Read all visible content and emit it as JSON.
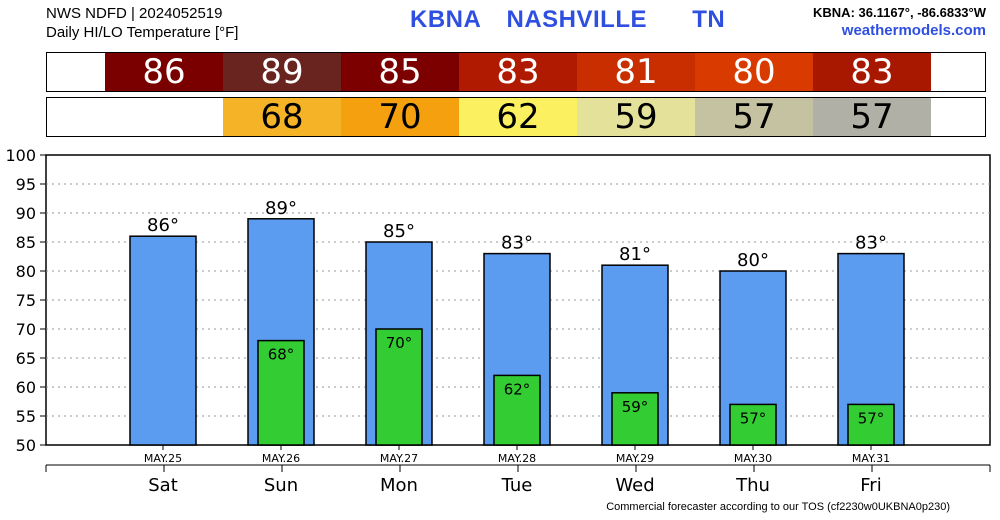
{
  "header": {
    "source_line": "NWS NDFD | 2024052519",
    "subtitle_line": "Daily HI/LO Temperature [°F]",
    "station_id": "KBNA",
    "station_name": "NASHVILLE",
    "state": "TN",
    "coords": "KBNA: 36.1167°, -86.6833°W",
    "site": "weathermodels.com"
  },
  "footer": "Commercial forecaster according to our TOS (cf2230w0UKBNA0p230)",
  "colors": {
    "high_bar": "#5b9cf0",
    "low_bar": "#33cc33",
    "highs_strip": [
      "#7a0000",
      "#6a2420",
      "#7c0000",
      "#b01a00",
      "#c82e00",
      "#d83a00",
      "#a81800"
    ],
    "lows_strip": [
      null,
      "#f5b327",
      "#f5a00e",
      "#fbf05f",
      "#e4e19a",
      "#c4c2a0",
      "#b0b0a6"
    ]
  },
  "chart_data": {
    "type": "bar",
    "categories": [
      "MAY.25",
      "MAY.26",
      "MAY.27",
      "MAY.28",
      "MAY.29",
      "MAY.30",
      "MAY.31"
    ],
    "days": [
      "Sat",
      "Sun",
      "Mon",
      "Tue",
      "Wed",
      "Thu",
      "Fri"
    ],
    "series": [
      {
        "values": [
          86,
          89,
          85,
          83,
          81,
          80,
          83
        ],
        "labels": [
          "86°",
          "89°",
          "85°",
          "83°",
          "81°",
          "80°",
          "83°"
        ]
      },
      {
        "values": [
          null,
          68,
          70,
          62,
          59,
          57,
          57
        ],
        "labels": [
          "",
          "68°",
          "70°",
          "62°",
          "59°",
          "57°",
          "57°"
        ]
      }
    ],
    "high_strip": [
      "86",
      "89",
      "85",
      "83",
      "81",
      "80",
      "83"
    ],
    "low_strip": [
      "",
      "68",
      "70",
      "62",
      "59",
      "57",
      "57"
    ],
    "ylim": [
      50,
      100
    ],
    "yticks": [
      "50",
      "55",
      "60",
      "65",
      "70",
      "75",
      "80",
      "85",
      "90",
      "95",
      "100"
    ],
    "grid": true
  }
}
